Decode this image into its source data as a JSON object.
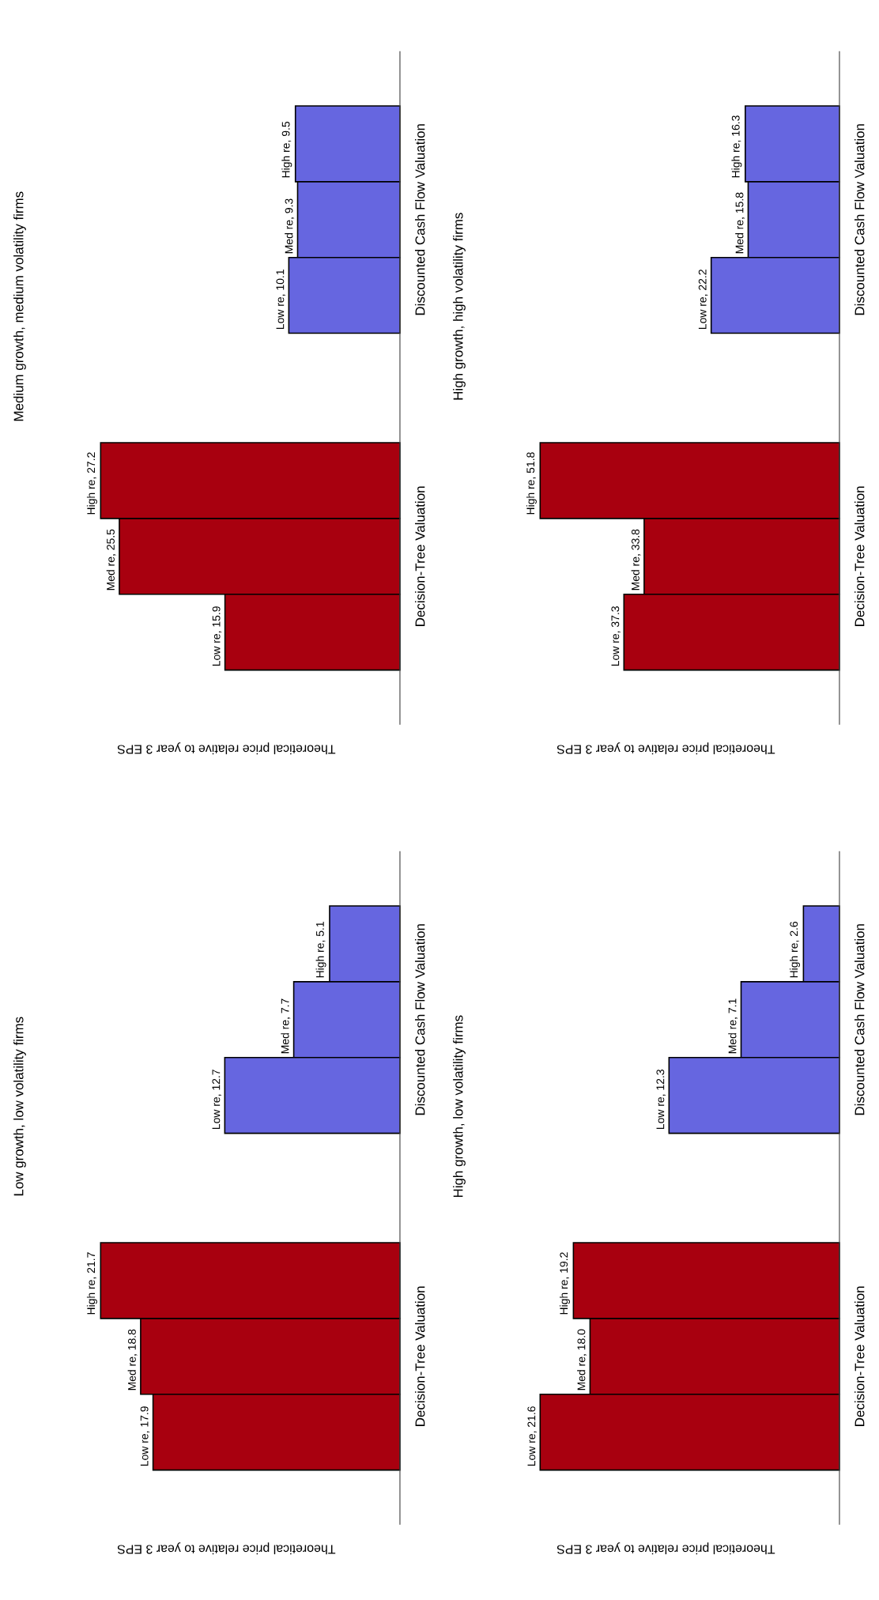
{
  "chart_data": [
    {
      "type": "bar",
      "orientation": "horizontal",
      "title": "Medium growth, medium volatility firms",
      "xlabel": "Theoretical price relative to year 3 EPS",
      "categories": [
        "Discounted Cash Flow Valuation",
        "Decision-Tree Valuation"
      ],
      "series": [
        {
          "colors": [
            "#6666e0",
            "#a8000f"
          ],
          "values": [
            9.5,
            27.2
          ],
          "value_labels": [
            "High re, 9.5",
            "High re, 27.2"
          ]
        },
        {
          "colors": [
            "#6666e0",
            "#a8000f"
          ],
          "values": [
            9.3,
            25.5
          ],
          "value_labels": [
            "Med re, 9.3",
            "Med re, 25.5"
          ]
        },
        {
          "colors": [
            "#6666e0",
            "#a8000f"
          ],
          "values": [
            10.1,
            15.9
          ],
          "value_labels": [
            "Low re, 10.1",
            "Low re, 15.9"
          ]
        }
      ]
    },
    {
      "type": "bar",
      "orientation": "horizontal",
      "title": "High growth, high volatility firms",
      "xlabel": "Theoretical price relative to year 3 EPS",
      "categories": [
        "Discounted Cash Flow Valuation",
        "Decision-Tree Valuation"
      ],
      "series": [
        {
          "colors": [
            "#6666e0",
            "#a8000f"
          ],
          "values": [
            16.3,
            51.8
          ],
          "value_labels": [
            "High re, 16.3",
            "High re, 51.8"
          ]
        },
        {
          "colors": [
            "#6666e0",
            "#a8000f"
          ],
          "values": [
            15.8,
            33.8
          ],
          "value_labels": [
            "Med re, 15.8",
            "Med re, 33.8"
          ]
        },
        {
          "colors": [
            "#6666e0",
            "#a8000f"
          ],
          "values": [
            22.2,
            37.3
          ],
          "value_labels": [
            "Low re, 22.2",
            "Low re, 37.3"
          ]
        }
      ]
    },
    {
      "type": "bar",
      "orientation": "horizontal",
      "title": "Low growth, low volatility firms",
      "xlabel": "Theoretical price relative to year 3 EPS",
      "categories": [
        "Discounted Cash Flow Valuation",
        "Decision-Tree Valuation"
      ],
      "series": [
        {
          "colors": [
            "#6666e0",
            "#a8000f"
          ],
          "values": [
            5.1,
            21.7
          ],
          "value_labels": [
            "High re, 5.1",
            "High re, 21.7"
          ]
        },
        {
          "colors": [
            "#6666e0",
            "#a8000f"
          ],
          "values": [
            7.7,
            18.8
          ],
          "value_labels": [
            "Med re, 7.7",
            "Med re, 18.8"
          ]
        },
        {
          "colors": [
            "#6666e0",
            "#a8000f"
          ],
          "values": [
            12.7,
            17.9
          ],
          "value_labels": [
            "Low re, 12.7",
            "Low re, 17.9"
          ]
        }
      ]
    },
    {
      "type": "bar",
      "orientation": "horizontal",
      "title": "High growth, low volatility firms",
      "xlabel": "Theoretical price relative to year 3 EPS",
      "categories": [
        "Discounted Cash Flow Valuation",
        "Decision-Tree Valuation"
      ],
      "series": [
        {
          "colors": [
            "#6666e0",
            "#a8000f"
          ],
          "values": [
            2.6,
            19.2
          ],
          "value_labels": [
            "High re, 2.6",
            "High re, 19.2"
          ]
        },
        {
          "colors": [
            "#6666e0",
            "#a8000f"
          ],
          "values": [
            7.1,
            18.0
          ],
          "value_labels": [
            "Med re, 7.1",
            "Med re, 18.0"
          ]
        },
        {
          "colors": [
            "#6666e0",
            "#a8000f"
          ],
          "values": [
            12.3,
            21.6
          ],
          "value_labels": [
            "Low re, 12.3",
            "Low re, 21.6"
          ]
        }
      ]
    }
  ]
}
